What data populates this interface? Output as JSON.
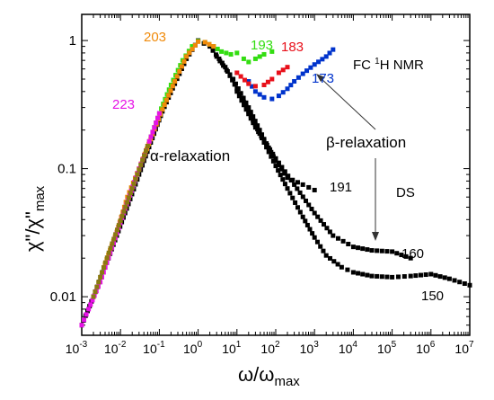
{
  "chart_data": {
    "type": "scatter",
    "xscale": "log",
    "yscale": "log",
    "xlim": [
      0.001,
      10000000
    ],
    "ylim": [
      0.005,
      1.6
    ],
    "grid": false,
    "xlabel": {
      "base": "ω/ω",
      "sub": "max"
    },
    "ylabel": {
      "base": "χ\"/χ\"",
      "sub": "max"
    },
    "x_tick_labels": [
      {
        "base": "10",
        "exp": "-3",
        "v": 0.001
      },
      {
        "base": "10",
        "exp": "-2",
        "v": 0.01
      },
      {
        "base": "10",
        "exp": "-1",
        "v": 0.1
      },
      {
        "base": "10",
        "exp": "0",
        "v": 1
      },
      {
        "base": "10",
        "exp": "1",
        "v": 10
      },
      {
        "base": "10",
        "exp": "2",
        "v": 100
      },
      {
        "base": "10",
        "exp": "3",
        "v": 1000
      },
      {
        "base": "10",
        "exp": "4",
        "v": 10000
      },
      {
        "base": "10",
        "exp": "5",
        "v": 100000
      },
      {
        "base": "10",
        "exp": "6",
        "v": 1000000
      },
      {
        "base": "10",
        "exp": "7",
        "v": 10000000
      }
    ],
    "y_tick_labels": [
      {
        "text": "1",
        "v": 1
      },
      {
        "text": "0.1",
        "v": 0.1
      },
      {
        "text": "0.01",
        "v": 0.01
      }
    ],
    "annotations": {
      "alpha": "α-relaxation",
      "beta": "β-relaxation",
      "fc_label": {
        "pre": "FC ",
        "sup": "1",
        "post": "H NMR"
      },
      "ds_label": "DS"
    },
    "series": [
      {
        "label": "150",
        "color": "#000000",
        "x": [
          0.001,
          0.002,
          0.004,
          0.008,
          0.016,
          0.03,
          0.06,
          0.12,
          0.25,
          0.5,
          1,
          2,
          5,
          10,
          20,
          50,
          100,
          200,
          500,
          1000,
          2000,
          5000,
          10000,
          30000,
          100000,
          300000,
          1000000,
          3000000,
          10000000
        ],
        "y": [
          0.006,
          0.01,
          0.017,
          0.03,
          0.053,
          0.09,
          0.16,
          0.28,
          0.46,
          0.72,
          1.0,
          0.9,
          0.62,
          0.42,
          0.28,
          0.16,
          0.105,
          0.07,
          0.042,
          0.029,
          0.021,
          0.017,
          0.0155,
          0.0145,
          0.0142,
          0.0145,
          0.015,
          0.0138,
          0.0123
        ]
      },
      {
        "label": "160",
        "color": "#000000",
        "x": [
          10,
          30,
          100,
          300,
          1000,
          3000,
          10000,
          30000,
          100000,
          300000
        ],
        "y": [
          0.4,
          0.21,
          0.12,
          0.075,
          0.045,
          0.03,
          0.0245,
          0.023,
          0.0225,
          0.02
        ]
      },
      {
        "label": "191",
        "color": "#000000",
        "x": [
          3,
          8,
          20,
          50,
          100,
          200,
          500,
          1000
        ],
        "y": [
          0.75,
          0.5,
          0.3,
          0.17,
          0.115,
          0.085,
          0.075,
          0.068
        ]
      },
      {
        "label": "173",
        "color": "#0033cc",
        "x": [
          20,
          30,
          50,
          80,
          120,
          200,
          300,
          500,
          1000,
          2000,
          3000
        ],
        "y": [
          0.48,
          0.4,
          0.36,
          0.35,
          0.37,
          0.42,
          0.48,
          0.55,
          0.65,
          0.75,
          0.85
        ]
      },
      {
        "label": "183",
        "color": "#e8101a",
        "x": [
          10,
          20,
          30,
          50,
          80,
          120,
          200
        ],
        "y": [
          0.56,
          0.46,
          0.44,
          0.45,
          0.5,
          0.56,
          0.62
        ]
      },
      {
        "label": "193",
        "color": "#33dd11",
        "x": [
          0.05,
          0.1,
          0.2,
          0.4,
          0.7,
          1,
          1.5,
          2.5,
          4,
          7,
          10,
          15,
          20,
          30,
          50,
          80
        ],
        "y": [
          0.15,
          0.27,
          0.45,
          0.7,
          0.9,
          0.99,
          0.97,
          0.9,
          0.82,
          0.78,
          0.8,
          0.72,
          0.68,
          0.72,
          0.78,
          0.82
        ]
      },
      {
        "label": "203",
        "color": "#f08a0a",
        "x": [
          0.004,
          0.008,
          0.015,
          0.03,
          0.06,
          0.12,
          0.25,
          0.5,
          1,
          1.5,
          2.5
        ],
        "y": [
          0.018,
          0.032,
          0.06,
          0.1,
          0.17,
          0.29,
          0.48,
          0.75,
          0.98,
          0.97,
          0.9
        ]
      },
      {
        "label": "223",
        "color": "#e612e6",
        "x": [
          0.001,
          0.0015,
          0.003,
          0.006,
          0.012,
          0.025,
          0.05,
          0.1
        ],
        "y": [
          0.006,
          0.008,
          0.013,
          0.024,
          0.045,
          0.085,
          0.15,
          0.27
        ]
      },
      {
        "label": "",
        "color": "#8a7a10",
        "x": [
          0.002,
          0.005,
          0.02,
          0.05
        ],
        "y": [
          0.01,
          0.022,
          0.07,
          0.15
        ]
      }
    ]
  }
}
